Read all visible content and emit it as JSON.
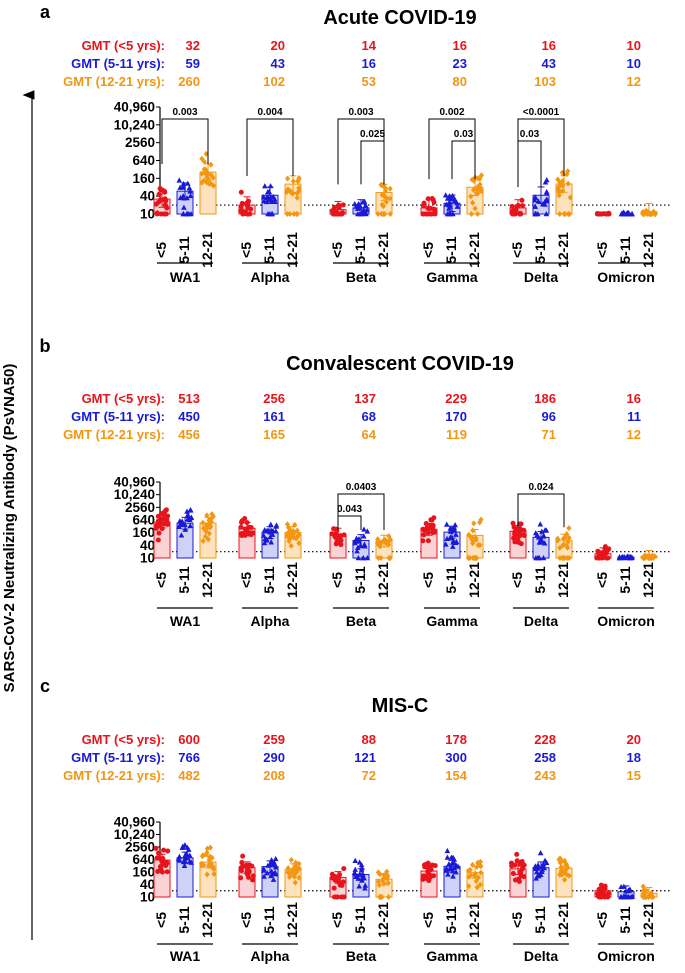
{
  "figure": {
    "y_axis_label": "SARS-CoV-2 Neutralizing Antibody (PsVNA50)",
    "colors": {
      "lt5": "#e8141b",
      "5to11": "#1a1ad6",
      "12to21": "#f39612",
      "text": "#000000"
    },
    "gmt_labels": [
      "GMT (<5 yrs):",
      "GMT (5-11 yrs):",
      "GMT (12-21 yrs):"
    ],
    "age_groups": [
      "<5",
      "5-11",
      "12-21"
    ],
    "variants": [
      "WA1",
      "Alpha",
      "Beta",
      "Gamma",
      "Delta",
      "Omicron"
    ],
    "y_tick_labels": [
      "10",
      "40",
      "160",
      "640",
      "2560",
      "10,240",
      "40,960"
    ],
    "y_ticks": [
      10,
      40,
      160,
      640,
      2560,
      10240,
      40960
    ],
    "detection_limit": 20
  },
  "chart_data": [
    {
      "type": "bar",
      "panel_letter": "a",
      "title": "Acute COVID-19",
      "scale": "log",
      "ylim": [
        5,
        40960
      ],
      "categories": [
        "WA1",
        "Alpha",
        "Beta",
        "Gamma",
        "Delta",
        "Omicron"
      ],
      "series": [
        {
          "name": "GMT (<5 yrs)",
          "values": [
            32,
            20,
            14,
            16,
            16,
            10
          ]
        },
        {
          "name": "GMT (5-11 yrs)",
          "values": [
            59,
            43,
            16,
            23,
            43,
            10
          ]
        },
        {
          "name": "GMT (12-21 yrs)",
          "values": [
            260,
            102,
            53,
            80,
            103,
            12
          ]
        }
      ],
      "comparisons": [
        {
          "variant": "WA1",
          "groups": [
            "<5",
            "12-21"
          ],
          "p": "0.003"
        },
        {
          "variant": "Alpha",
          "groups": [
            "<5",
            "12-21"
          ],
          "p": "0.004"
        },
        {
          "variant": "Beta",
          "groups": [
            "<5",
            "12-21"
          ],
          "p": "0.003"
        },
        {
          "variant": "Beta",
          "groups": [
            "5-11",
            "12-21"
          ],
          "p": "0.025"
        },
        {
          "variant": "Gamma",
          "groups": [
            "<5",
            "12-21"
          ],
          "p": "0.002"
        },
        {
          "variant": "Gamma",
          "groups": [
            "5-11",
            "12-21"
          ],
          "p": "0.03"
        },
        {
          "variant": "Delta",
          "groups": [
            "<5",
            "12-21"
          ],
          "p": "<0.0001"
        },
        {
          "variant": "Delta",
          "groups": [
            "<5",
            "5-11"
          ],
          "p": "0.03"
        }
      ]
    },
    {
      "type": "bar",
      "panel_letter": "b",
      "title": "Convalescent COVID-19",
      "scale": "log",
      "ylim": [
        5,
        40960
      ],
      "categories": [
        "WA1",
        "Alpha",
        "Beta",
        "Gamma",
        "Delta",
        "Omicron"
      ],
      "series": [
        {
          "name": "GMT (<5 yrs)",
          "values": [
            513,
            256,
            137,
            229,
            186,
            16
          ]
        },
        {
          "name": "GMT (5-11 yrs)",
          "values": [
            450,
            161,
            68,
            170,
            96,
            11
          ]
        },
        {
          "name": "GMT (12-21 yrs)",
          "values": [
            456,
            165,
            64,
            119,
            71,
            12
          ]
        }
      ],
      "comparisons": [
        {
          "variant": "Beta",
          "groups": [
            "<5",
            "12-21"
          ],
          "p": "0.0403"
        },
        {
          "variant": "Beta",
          "groups": [
            "<5",
            "5-11"
          ],
          "p": "0.043"
        },
        {
          "variant": "Delta",
          "groups": [
            "<5",
            "12-21"
          ],
          "p": "0.024"
        }
      ]
    },
    {
      "type": "bar",
      "panel_letter": "c",
      "title": "MIS-C",
      "scale": "log",
      "ylim": [
        5,
        40960
      ],
      "categories": [
        "WA1",
        "Alpha",
        "Beta",
        "Gamma",
        "Delta",
        "Omicron"
      ],
      "series": [
        {
          "name": "GMT (<5 yrs)",
          "values": [
            600,
            259,
            88,
            178,
            228,
            20
          ]
        },
        {
          "name": "GMT (5-11 yrs)",
          "values": [
            766,
            290,
            121,
            300,
            258,
            18
          ]
        },
        {
          "name": "GMT (12-21 yrs)",
          "values": [
            482,
            208,
            72,
            154,
            243,
            15
          ]
        }
      ],
      "comparisons": []
    }
  ]
}
